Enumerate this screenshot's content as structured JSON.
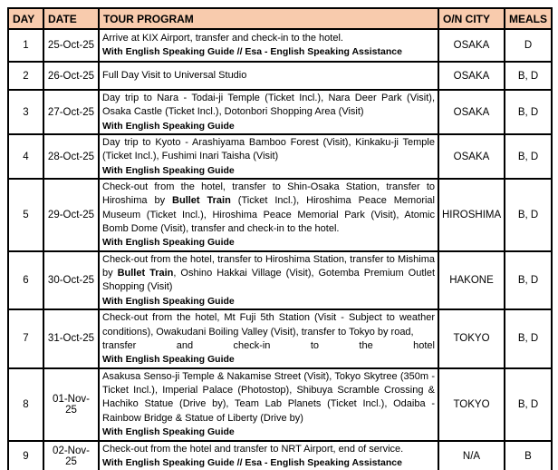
{
  "page": {
    "background": "#FFFFFF"
  },
  "table": {
    "border_color": "#000000",
    "header": {
      "background": "#F8CBAD",
      "text_color": "#000000",
      "columns": [
        {
          "key": "day",
          "label": "DAY"
        },
        {
          "key": "date",
          "label": "DATE"
        },
        {
          "key": "program",
          "label": "TOUR PROGRAM"
        },
        {
          "key": "city",
          "label": "O/N CITY"
        },
        {
          "key": "meals",
          "label": "MEALS"
        }
      ]
    },
    "rows": [
      {
        "day": "1",
        "date": "25-Oct-25",
        "program": [
          {
            "text": "Arrive at KIX Airport, transfer and check-in to the hotel.",
            "bold": false
          }
        ],
        "note": "With English Speaking Guide // Esa - English Speaking Assistance",
        "city": "OSAKA",
        "meals": "D"
      },
      {
        "day": "2",
        "date": "26-Oct-25",
        "program": [
          {
            "text": "Full Day Visit to Universal Studio",
            "bold": false
          }
        ],
        "city": "OSAKA",
        "meals": "B, D"
      },
      {
        "day": "3",
        "date": "27-Oct-25",
        "program": [
          {
            "text": "Day trip to Nara - Todai-ji Temple (Ticket Incl.), Nara Deer Park (Visit), Osaka Castle (Ticket Incl.), Dotonbori Shopping Area (Visit)",
            "bold": false
          }
        ],
        "note": "With English Speaking Guide",
        "city": "OSAKA",
        "meals": "B, D"
      },
      {
        "day": "4",
        "date": "28-Oct-25",
        "program": [
          {
            "text": "Day trip to Kyoto - Arashiyama Bamboo Forest (Visit), Kinkaku-ji Temple (Ticket Incl.), Fushimi Inari Taisha (Visit)",
            "bold": false
          }
        ],
        "note": "With English Speaking Guide",
        "city": "OSAKA",
        "meals": "B, D"
      },
      {
        "day": "5",
        "date": "29-Oct-25",
        "program": [
          {
            "text": "Check-out from the hotel, transfer to Shin-Osaka Station, transfer to Hiroshima by ",
            "bold": false
          },
          {
            "text": "Bullet Train",
            "bold": true
          },
          {
            "text": " (Ticket Incl.), Hiroshima Peace Memorial Museum (Ticket Incl.), Hiroshima Peace Memorial Park (Visit), Atomic Bomb Dome (Visit), transfer and check-in to the hotel.",
            "bold": false
          }
        ],
        "note": "With English Speaking Guide",
        "city": "HIROSHIMA",
        "meals": "B, D"
      },
      {
        "day": "6",
        "date": "30-Oct-25",
        "program": [
          {
            "text": "Check-out from the hotel, transfer to Hiroshima Station, transfer to Mishima by ",
            "bold": false
          },
          {
            "text": "Bullet Train",
            "bold": true
          },
          {
            "text": ", Oshino Hakkai Village (Visit), Gotemba Premium Outlet Shopping (Visit)",
            "bold": false
          }
        ],
        "note": "With English Speaking Guide",
        "city": "HAKONE",
        "meals": "B, D"
      },
      {
        "day": "7",
        "date": "31-Oct-25",
        "program": [
          {
            "text": "Check-out from the hotel, Mt Fuji 5th Station (Visit - Subject to weather conditions), Owakudani Boiling Valley (Visit), transfer to Tokyo by road,",
            "bold": false
          }
        ],
        "spread_line": "transfer and check-in to the hotel",
        "note": "With English Speaking Guide",
        "city": "TOKYO",
        "meals": "B, D"
      },
      {
        "day": "8",
        "date": "01-Nov-25",
        "program": [
          {
            "text": "Asakusa Senso-ji Temple & Nakamise Street (Visit), Tokyo Skytree (350m - Ticket Incl.), Imperial Palace (Photostop), Shibuya Scramble Crossing & Hachiko Statue (Drive by), Team Lab Planets (Ticket Incl.), Odaiba - Rainbow Bridge & Statue of Liberty (Drive by)",
            "bold": false
          }
        ],
        "note": "With English Speaking Guide",
        "city": "TOKYO",
        "meals": "B, D"
      },
      {
        "day": "9",
        "date": "02-Nov-25",
        "program": [
          {
            "text": "Check-out from the hotel and transfer to NRT Airport, end of service.",
            "bold": false
          }
        ],
        "note": "With English Speaking Guide // Esa - English Speaking Assistance",
        "city": "N/A",
        "meals": "B"
      }
    ]
  }
}
